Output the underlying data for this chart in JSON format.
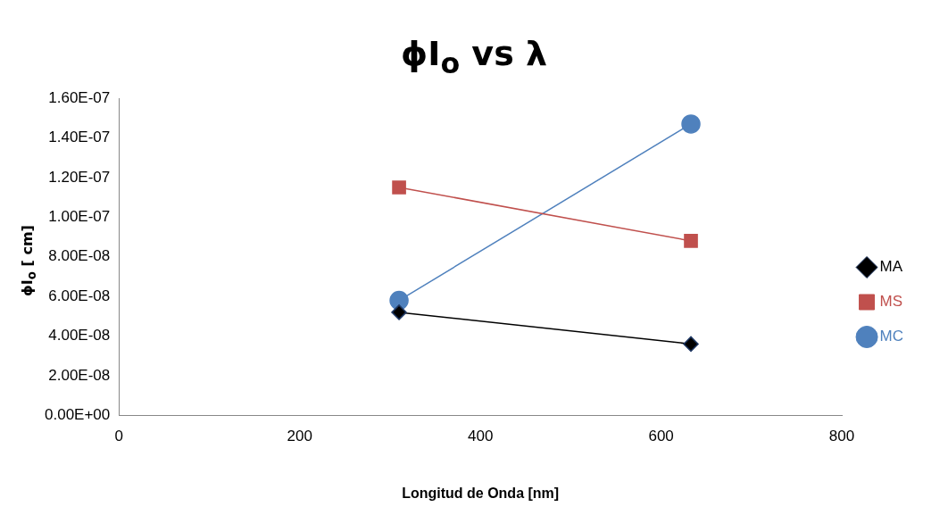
{
  "chart_data": {
    "type": "line",
    "title": "ϕI$_{o}$ vs λ",
    "xlabel": "Longitud de Onda [nm]",
    "ylabel": "ϕI$_{o}$ [ cm]",
    "x": [
      310,
      633
    ],
    "series": [
      {
        "name": "MA",
        "color": "#000000",
        "values": [
          5.2e-08,
          3.6e-08
        ],
        "marker": "diamond"
      },
      {
        "name": "MS",
        "color": "#c0504d",
        "values": [
          1.15e-07,
          8.8e-08
        ],
        "marker": "square"
      },
      {
        "name": "MC",
        "color": "#4f81bd",
        "values": [
          5.8e-08,
          1.47e-07
        ],
        "marker": "circle"
      }
    ],
    "xlim": [
      0,
      800
    ],
    "xticks": [
      0,
      200,
      400,
      600,
      800
    ],
    "ylim": [
      0,
      1.6e-07
    ],
    "yticks": [
      {
        "value": 0,
        "label": "0.00E+00"
      },
      {
        "value": 2e-08,
        "label": "2.00E-08"
      },
      {
        "value": 4e-08,
        "label": "4.00E-08"
      },
      {
        "value": 6e-08,
        "label": "6.00E-08"
      },
      {
        "value": 8e-08,
        "label": "8.00E-08"
      },
      {
        "value": 1e-07,
        "label": "1.00E-07"
      },
      {
        "value": 1.2e-07,
        "label": "1.20E-07"
      },
      {
        "value": 1.4e-07,
        "label": "1.40E-07"
      },
      {
        "value": 1.6e-07,
        "label": "1.60E-07"
      }
    ],
    "grid": false,
    "legend": "right",
    "line_style": "solid"
  }
}
